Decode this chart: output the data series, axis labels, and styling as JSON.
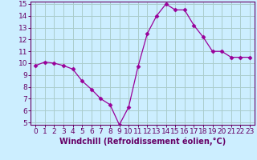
{
  "x": [
    0,
    1,
    2,
    3,
    4,
    5,
    6,
    7,
    8,
    9,
    10,
    11,
    12,
    13,
    14,
    15,
    16,
    17,
    18,
    19,
    20,
    21,
    22,
    23
  ],
  "y": [
    9.8,
    10.1,
    10.0,
    9.8,
    9.5,
    8.5,
    7.8,
    7.0,
    6.5,
    4.8,
    6.3,
    9.7,
    12.5,
    14.0,
    15.0,
    14.5,
    14.5,
    13.2,
    12.2,
    11.0,
    11.0,
    10.5,
    10.5,
    10.5
  ],
  "line_color": "#990099",
  "marker": "D",
  "marker_size": 2.5,
  "bg_color": "#cceeff",
  "grid_color": "#aacccc",
  "xlabel": "Windchill (Refroidissement éolien,°C)",
  "xlabel_color": "#660066",
  "xlabel_fontsize": 7,
  "tick_color": "#660066",
  "tick_labelsize": 6.5,
  "ylim": [
    5,
    15
  ],
  "yticks": [
    5,
    6,
    7,
    8,
    9,
    10,
    11,
    12,
    13,
    14,
    15
  ],
  "xlim": [
    -0.5,
    23.5
  ],
  "xticks": [
    0,
    1,
    2,
    3,
    4,
    5,
    6,
    7,
    8,
    9,
    10,
    11,
    12,
    13,
    14,
    15,
    16,
    17,
    18,
    19,
    20,
    21,
    22,
    23
  ]
}
